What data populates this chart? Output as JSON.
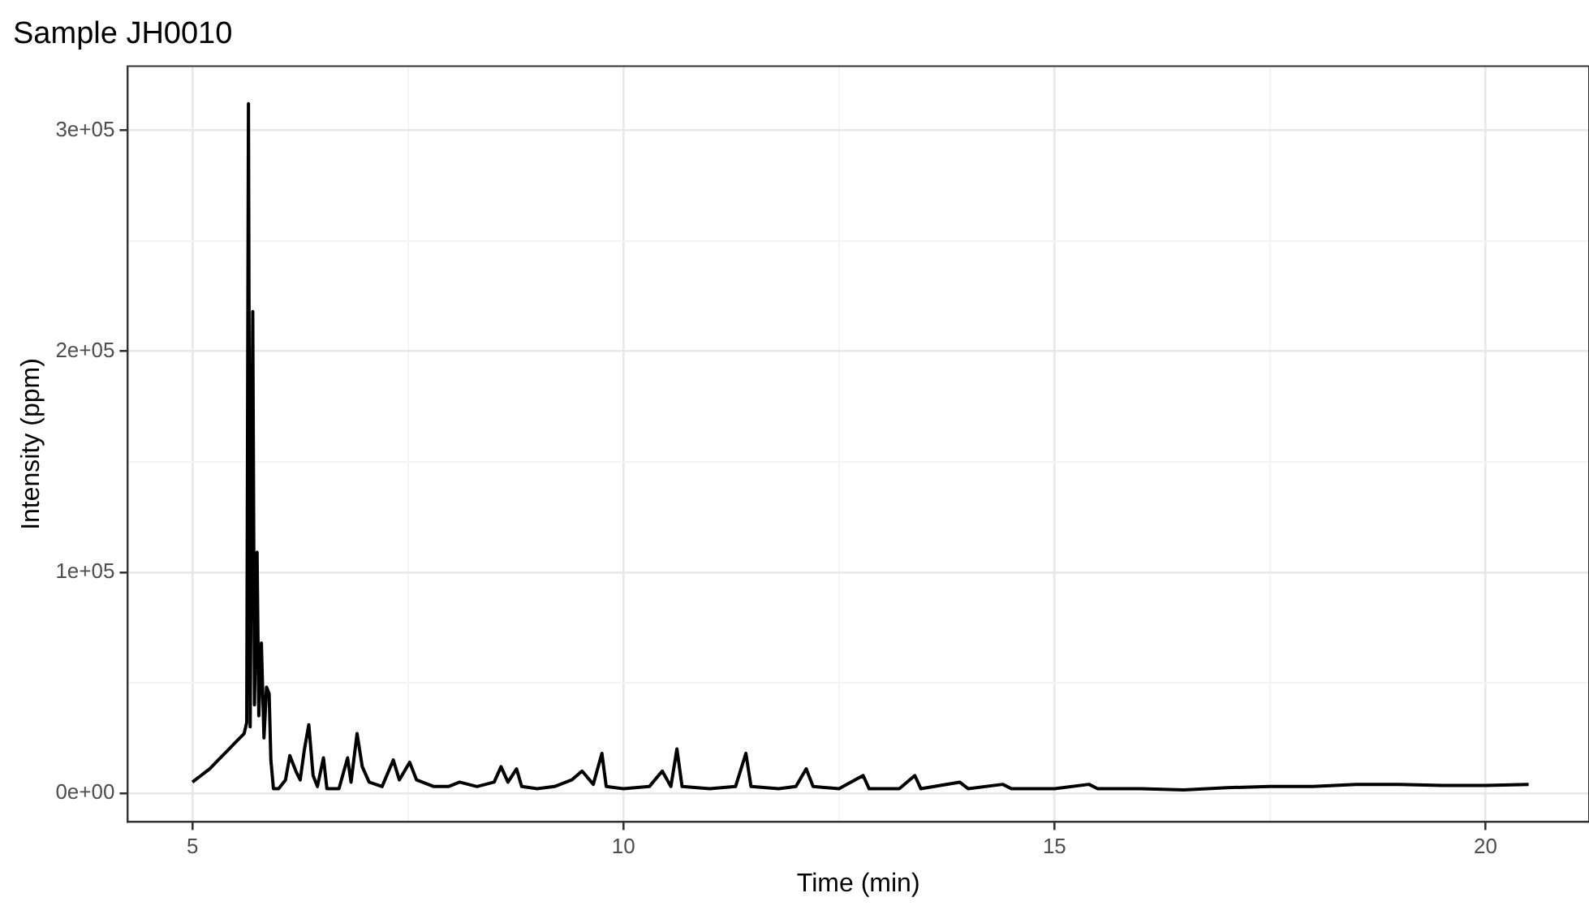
{
  "chart_data": {
    "type": "line",
    "title": "Sample JH0010",
    "xlabel": "Time (min)",
    "ylabel": "Intensity (ppm)",
    "xlim": [
      4.25,
      21.2
    ],
    "xticks": [
      5,
      {
        "value": 7.5,
        "label": null
      },
      10,
      {
        "value": 12.5,
        "label": null
      },
      15,
      {
        "value": 17.5,
        "label": null
      },
      20
    ],
    "ylim": [
      -13000,
      329000
    ],
    "yticks": [
      {
        "value": 0,
        "label": "0e+00"
      },
      {
        "value": 50000,
        "label": null
      },
      {
        "value": 100000,
        "label": "1e+05"
      },
      {
        "value": 150000,
        "label": null
      },
      {
        "value": 200000,
        "label": "2e+05"
      },
      {
        "value": 250000,
        "label": null
      },
      {
        "value": 300000,
        "label": "3e+05"
      }
    ],
    "grid": true,
    "legend": false,
    "marker": "none",
    "line_style": "solid",
    "series": [
      {
        "color": "#000000",
        "x": [
          5.0,
          5.1,
          5.2,
          5.3,
          5.4,
          5.5,
          5.6,
          5.63,
          5.65,
          5.67,
          5.7,
          5.72,
          5.75,
          5.77,
          5.8,
          5.83,
          5.86,
          5.89,
          5.91,
          5.94,
          6.0,
          6.08,
          6.13,
          6.2,
          6.25,
          6.3,
          6.35,
          6.4,
          6.45,
          6.52,
          6.56,
          6.7,
          6.8,
          6.84,
          6.91,
          6.97,
          7.05,
          7.2,
          7.33,
          7.4,
          7.52,
          7.6,
          7.8,
          7.97,
          8.1,
          8.3,
          8.5,
          8.58,
          8.66,
          8.76,
          8.82,
          9.0,
          9.2,
          9.4,
          9.52,
          9.65,
          9.75,
          9.8,
          10.0,
          10.3,
          10.45,
          10.55,
          10.62,
          10.68,
          11.0,
          11.3,
          11.42,
          11.48,
          11.8,
          12.0,
          12.12,
          12.2,
          12.5,
          12.78,
          12.85,
          13.2,
          13.38,
          13.45,
          13.9,
          14.0,
          14.4,
          14.5,
          15.0,
          15.4,
          15.5,
          16.0,
          16.5,
          17.0,
          17.5,
          18.0,
          18.5,
          19.0,
          19.5,
          20.0,
          20.5
        ],
        "values": [
          5000,
          8000,
          11000,
          15000,
          19000,
          23000,
          27000,
          32000,
          312000,
          30000,
          218000,
          40000,
          109000,
          35000,
          68000,
          25000,
          48000,
          45000,
          15000,
          2000,
          2000,
          6000,
          17000,
          10000,
          6000,
          20000,
          31000,
          8000,
          3000,
          16000,
          2000,
          2000,
          16000,
          5000,
          27000,
          12000,
          5000,
          3000,
          15000,
          6000,
          14000,
          6000,
          3000,
          3000,
          5000,
          3000,
          5000,
          12000,
          5000,
          11000,
          3000,
          2000,
          3000,
          6000,
          10000,
          4000,
          18000,
          3000,
          2000,
          3000,
          10000,
          3000,
          20000,
          3000,
          2000,
          3000,
          18000,
          3000,
          2000,
          3000,
          11000,
          3000,
          2000,
          8000,
          2000,
          2000,
          8000,
          2000,
          5000,
          2000,
          4000,
          2000,
          2000,
          4000,
          2000,
          2000,
          1500,
          2500,
          3000,
          3000,
          4000,
          4000,
          3500,
          3500,
          4000
        ]
      }
    ]
  }
}
